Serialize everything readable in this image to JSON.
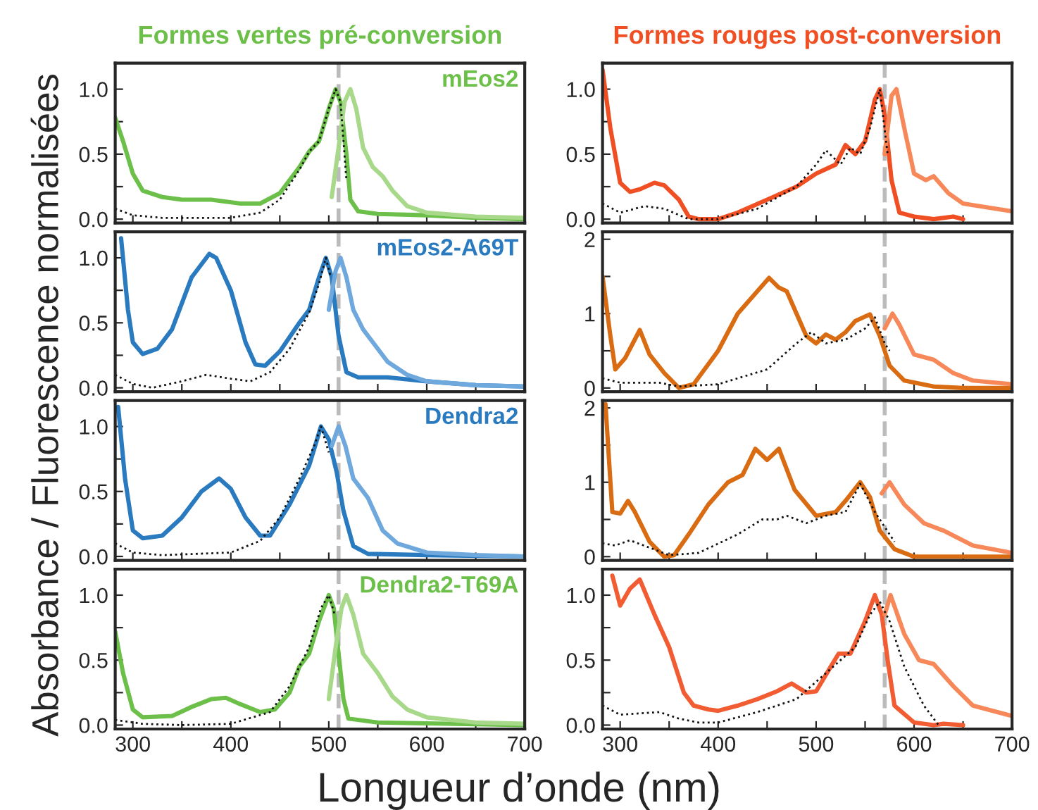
{
  "chart_data": [
    {
      "type": "line",
      "title": "Formes vertes pré-conversion",
      "ylabel": "Absorbance / Fluorescence normalisées",
      "xlabel": "Longueur d’onde (nm)",
      "annotations": [
        "mEos2"
      ],
      "xlim": [
        282,
        700
      ],
      "ylim": [
        -0.03,
        1.2
      ],
      "xticks": [
        300,
        {
          "value": 350,
          "label": null
        },
        400,
        {
          "value": 450,
          "label": null
        },
        500,
        {
          "value": 550,
          "label": null
        },
        600,
        {
          "value": 650,
          "label": null
        },
        700
      ],
      "yticks": [
        {
          "value": 0,
          "label": "0.0"
        },
        {
          "value": 0.25,
          "label": null
        },
        0.5,
        {
          "value": 0.75,
          "label": null
        },
        {
          "value": 1,
          "label": "1.0"
        }
      ],
      "tick_labels": "y",
      "ref_lines": [
        {
          "axis": "x",
          "value": 510,
          "color": "#bbbbbb",
          "line_style": "dashed"
        }
      ],
      "series": [
        {
          "color": "#6cc04a",
          "line_style": "solid",
          "x": [
            282,
            290,
            300,
            310,
            330,
            350,
            380,
            410,
            430,
            450,
            470,
            480,
            490,
            500,
            507,
            512,
            518,
            522,
            530,
            550,
            600,
            650,
            700
          ],
          "values": [
            0.78,
            0.6,
            0.35,
            0.22,
            0.17,
            0.15,
            0.15,
            0.12,
            0.12,
            0.2,
            0.4,
            0.52,
            0.6,
            0.85,
            1.0,
            0.9,
            0.5,
            0.15,
            0.06,
            0.04,
            0.03,
            0.01,
            0.0
          ]
        },
        {
          "color": "#a8d88a",
          "line_style": "solid",
          "x": [
            503,
            510,
            516,
            522,
            528,
            535,
            545,
            555,
            565,
            580,
            600,
            650,
            700
          ],
          "values": [
            0.17,
            0.55,
            0.9,
            1.0,
            0.85,
            0.55,
            0.4,
            0.33,
            0.22,
            0.1,
            0.05,
            0.02,
            0.01
          ]
        },
        {
          "color": "#111111",
          "line_style": "dotted",
          "x": [
            282,
            300,
            330,
            400,
            430,
            450,
            470,
            480,
            490,
            500,
            507,
            512,
            518
          ],
          "values": [
            0.08,
            0.03,
            0.01,
            0.01,
            0.05,
            0.15,
            0.38,
            0.52,
            0.6,
            0.85,
            1.0,
            0.9,
            0.3
          ]
        }
      ]
    },
    {
      "type": "line",
      "title": "Formes rouges post-conversion",
      "xlim": [
        282,
        700
      ],
      "ylim": [
        -0.03,
        1.2
      ],
      "xticks": [
        300,
        {
          "value": 350,
          "label": null
        },
        400,
        {
          "value": 450,
          "label": null
        },
        500,
        {
          "value": 550,
          "label": null
        },
        600,
        {
          "value": 650,
          "label": null
        },
        700
      ],
      "yticks": [
        {
          "value": 0,
          "label": "0.0"
        },
        {
          "value": 0.25,
          "label": null
        },
        0.5,
        {
          "value": 0.75,
          "label": null
        },
        {
          "value": 1,
          "label": "1.0"
        }
      ],
      "tick_labels": "y",
      "ref_lines": [
        {
          "axis": "x",
          "value": 570,
          "color": "#bbbbbb",
          "line_style": "dashed"
        }
      ],
      "series": [
        {
          "color": "#f04e23",
          "line_style": "solid",
          "x": [
            282,
            290,
            300,
            310,
            320,
            335,
            345,
            360,
            370,
            380,
            400,
            420,
            450,
            480,
            500,
            520,
            530,
            540,
            550,
            560,
            565,
            570,
            577,
            585,
            600,
            620,
            640,
            650
          ],
          "values": [
            1.15,
            0.7,
            0.28,
            0.21,
            0.23,
            0.28,
            0.26,
            0.15,
            0.02,
            0.0,
            0.0,
            0.05,
            0.15,
            0.25,
            0.35,
            0.42,
            0.57,
            0.5,
            0.6,
            0.92,
            1.0,
            0.8,
            0.3,
            0.05,
            0.02,
            0.0,
            0.02,
            0.0
          ]
        },
        {
          "color": "#f7885a",
          "line_style": "solid",
          "x": [
            570,
            577,
            582,
            590,
            600,
            612,
            620,
            635,
            650,
            700
          ],
          "values": [
            0.5,
            0.95,
            1.0,
            0.7,
            0.35,
            0.3,
            0.33,
            0.2,
            0.12,
            0.06
          ]
        },
        {
          "color": "#111111",
          "line_style": "dotted",
          "x": [
            282,
            300,
            325,
            345,
            370,
            400,
            440,
            480,
            500,
            510,
            525,
            535,
            545,
            555,
            565,
            573
          ],
          "values": [
            0.12,
            0.05,
            0.1,
            0.08,
            0.0,
            0.0,
            0.08,
            0.25,
            0.42,
            0.53,
            0.42,
            0.55,
            0.5,
            0.7,
            1.0,
            0.5
          ]
        }
      ]
    },
    {
      "type": "line",
      "annotations": [
        "mEos2-A69T"
      ],
      "xlim": [
        282,
        700
      ],
      "ylim": [
        -0.03,
        1.2
      ],
      "xticks": [
        300,
        {
          "value": 350,
          "label": null
        },
        400,
        {
          "value": 450,
          "label": null
        },
        500,
        {
          "value": 550,
          "label": null
        },
        600,
        {
          "value": 650,
          "label": null
        },
        700
      ],
      "yticks": [
        {
          "value": 0,
          "label": "0.0"
        },
        {
          "value": 0.25,
          "label": null
        },
        0.5,
        {
          "value": 0.75,
          "label": null
        },
        {
          "value": 1,
          "label": "1.0"
        }
      ],
      "tick_labels": "y",
      "ref_lines": [
        {
          "axis": "x",
          "value": 510,
          "color": "#bbbbbb",
          "line_style": "dashed"
        }
      ],
      "series": [
        {
          "color": "#2a7abf",
          "line_style": "solid",
          "x": [
            288,
            295,
            300,
            310,
            325,
            340,
            360,
            378,
            385,
            400,
            415,
            425,
            435,
            450,
            470,
            480,
            490,
            497,
            503,
            510,
            518,
            530,
            560,
            600,
            650,
            700
          ],
          "values": [
            1.15,
            0.6,
            0.35,
            0.26,
            0.3,
            0.45,
            0.85,
            1.03,
            1.0,
            0.75,
            0.35,
            0.18,
            0.17,
            0.28,
            0.5,
            0.6,
            0.85,
            1.0,
            0.85,
            0.4,
            0.12,
            0.08,
            0.08,
            0.05,
            0.02,
            0.01
          ]
        },
        {
          "color": "#6fa8dc",
          "line_style": "solid",
          "x": [
            500,
            507,
            512,
            518,
            525,
            535,
            545,
            560,
            580,
            600,
            650,
            700
          ],
          "values": [
            0.6,
            0.9,
            1.0,
            0.85,
            0.6,
            0.45,
            0.35,
            0.2,
            0.1,
            0.05,
            0.02,
            0.01
          ]
        },
        {
          "color": "#111111",
          "line_style": "dotted",
          "x": [
            282,
            300,
            320,
            350,
            375,
            400,
            420,
            440,
            460,
            480,
            490,
            497,
            502
          ],
          "values": [
            0.1,
            0.03,
            0.0,
            0.05,
            0.1,
            0.07,
            0.05,
            0.12,
            0.3,
            0.58,
            0.8,
            1.0,
            0.85
          ]
        }
      ]
    },
    {
      "type": "line",
      "xlim": [
        282,
        700
      ],
      "ylim": [
        -0.05,
        2.1
      ],
      "xticks": [
        300,
        {
          "value": 350,
          "label": null
        },
        400,
        {
          "value": 450,
          "label": null
        },
        500,
        {
          "value": 550,
          "label": null
        },
        600,
        {
          "value": 650,
          "label": null
        },
        700
      ],
      "yticks": [
        0,
        {
          "value": 0.5,
          "label": null
        },
        1,
        {
          "value": 1.5,
          "label": null
        },
        2
      ],
      "tick_labels": "y",
      "ref_lines": [
        {
          "axis": "x",
          "value": 570,
          "color": "#bbbbbb",
          "line_style": "dashed"
        }
      ],
      "series": [
        {
          "color": "#d96c12",
          "line_style": "solid",
          "x": [
            282,
            290,
            295,
            305,
            320,
            330,
            345,
            360,
            375,
            400,
            420,
            440,
            452,
            462,
            470,
            480,
            490,
            500,
            510,
            520,
            530,
            540,
            555,
            565,
            575,
            590,
            620,
            650,
            700
          ],
          "values": [
            1.5,
            0.7,
            0.25,
            0.4,
            0.78,
            0.45,
            0.2,
            0.0,
            0.05,
            0.5,
            1.0,
            1.3,
            1.48,
            1.35,
            1.3,
            1.0,
            0.7,
            0.6,
            0.72,
            0.65,
            0.75,
            0.9,
            0.99,
            0.7,
            0.3,
            0.1,
            0.02,
            0.0,
            0.0
          ]
        },
        {
          "color": "#f7885a",
          "line_style": "solid",
          "x": [
            570,
            578,
            585,
            600,
            620,
            640,
            660,
            700
          ],
          "values": [
            0.8,
            1.0,
            0.85,
            0.45,
            0.38,
            0.2,
            0.1,
            0.05
          ]
        },
        {
          "color": "#111111",
          "line_style": "dotted",
          "x": [
            282,
            300,
            340,
            360,
            400,
            450,
            480,
            495,
            510,
            530,
            550,
            560,
            570,
            575
          ],
          "values": [
            0.13,
            0.07,
            0.07,
            0.02,
            0.05,
            0.25,
            0.6,
            0.75,
            0.6,
            0.65,
            0.8,
            0.95,
            0.6,
            0.5
          ]
        }
      ]
    },
    {
      "type": "line",
      "annotations": [
        "Dendra2"
      ],
      "xlim": [
        282,
        700
      ],
      "ylim": [
        -0.03,
        1.2
      ],
      "xticks": [
        300,
        {
          "value": 350,
          "label": null
        },
        400,
        {
          "value": 450,
          "label": null
        },
        500,
        {
          "value": 550,
          "label": null
        },
        600,
        {
          "value": 650,
          "label": null
        },
        700
      ],
      "yticks": [
        {
          "value": 0,
          "label": "0.0"
        },
        {
          "value": 0.25,
          "label": null
        },
        0.5,
        {
          "value": 0.75,
          "label": null
        },
        {
          "value": 1,
          "label": "1.0"
        }
      ],
      "tick_labels": "y",
      "ref_lines": [
        {
          "axis": "x",
          "value": 510,
          "color": "#bbbbbb",
          "line_style": "dashed"
        }
      ],
      "series": [
        {
          "color": "#2a7abf",
          "line_style": "solid",
          "x": [
            285,
            292,
            300,
            310,
            330,
            350,
            370,
            388,
            400,
            415,
            430,
            440,
            460,
            480,
            492,
            500,
            508,
            515,
            525,
            540,
            600,
            700
          ],
          "values": [
            1.15,
            0.6,
            0.2,
            0.14,
            0.16,
            0.3,
            0.5,
            0.6,
            0.52,
            0.3,
            0.16,
            0.16,
            0.4,
            0.7,
            1.0,
            0.9,
            0.65,
            0.35,
            0.08,
            0.02,
            0.01,
            0.0
          ]
        },
        {
          "color": "#6fa8dc",
          "line_style": "solid",
          "x": [
            503,
            510,
            517,
            525,
            540,
            555,
            570,
            600,
            650,
            700
          ],
          "values": [
            0.85,
            1.0,
            0.85,
            0.6,
            0.45,
            0.2,
            0.1,
            0.03,
            0.01,
            0.0
          ]
        },
        {
          "color": "#111111",
          "line_style": "dotted",
          "x": [
            282,
            300,
            330,
            400,
            430,
            450,
            470,
            485,
            492,
            500
          ],
          "values": [
            0.1,
            0.03,
            0.01,
            0.03,
            0.12,
            0.3,
            0.6,
            0.85,
            1.0,
            0.8
          ]
        }
      ]
    },
    {
      "type": "line",
      "xlim": [
        282,
        700
      ],
      "ylim": [
        -0.05,
        2.1
      ],
      "xticks": [
        300,
        {
          "value": 350,
          "label": null
        },
        400,
        {
          "value": 450,
          "label": null
        },
        500,
        {
          "value": 550,
          "label": null
        },
        600,
        {
          "value": 650,
          "label": null
        },
        700
      ],
      "yticks": [
        0,
        {
          "value": 0.5,
          "label": null
        },
        1,
        {
          "value": 1.5,
          "label": null
        },
        2
      ],
      "tick_labels": "y",
      "ref_lines": [
        {
          "axis": "x",
          "value": 570,
          "color": "#bbbbbb",
          "line_style": "dashed"
        }
      ],
      "series": [
        {
          "color": "#d96c12",
          "line_style": "solid",
          "x": [
            285,
            292,
            300,
            308,
            315,
            330,
            345,
            355,
            370,
            390,
            410,
            425,
            438,
            450,
            462,
            478,
            500,
            520,
            530,
            545,
            555,
            565,
            580,
            600,
            700
          ],
          "values": [
            2.05,
            0.6,
            0.58,
            0.75,
            0.6,
            0.2,
            0.0,
            0.02,
            0.3,
            0.7,
            1.0,
            1.1,
            1.45,
            1.3,
            1.45,
            0.9,
            0.55,
            0.6,
            0.75,
            1.0,
            0.8,
            0.35,
            0.1,
            0.0,
            0.0
          ]
        },
        {
          "color": "#f7885a",
          "line_style": "solid",
          "x": [
            567,
            575,
            590,
            610,
            630,
            660,
            700
          ],
          "values": [
            0.85,
            1.0,
            0.7,
            0.45,
            0.35,
            0.15,
            0.05
          ]
        },
        {
          "color": "#111111",
          "line_style": "dotted",
          "x": [
            282,
            295,
            310,
            330,
            350,
            380,
            420,
            445,
            460,
            470,
            490,
            510,
            530,
            545,
            560,
            580
          ],
          "values": [
            0.18,
            0.15,
            0.22,
            0.12,
            0.02,
            0.05,
            0.3,
            0.5,
            0.5,
            0.55,
            0.45,
            0.55,
            0.6,
            0.98,
            0.6,
            0.2
          ]
        }
      ]
    },
    {
      "type": "line",
      "annotations": [
        "Dendra2-T69A"
      ],
      "xlim": [
        282,
        700
      ],
      "ylim": [
        -0.03,
        1.2
      ],
      "xticks": [
        300,
        {
          "value": 350,
          "label": null
        },
        400,
        {
          "value": 450,
          "label": null
        },
        500,
        {
          "value": 550,
          "label": null
        },
        600,
        {
          "value": 650,
          "label": null
        },
        700
      ],
      "yticks": [
        {
          "value": 0,
          "label": "0.0"
        },
        {
          "value": 0.25,
          "label": null
        },
        0.5,
        {
          "value": 0.75,
          "label": null
        },
        {
          "value": 1,
          "label": "1.0"
        }
      ],
      "ref_lines": [
        {
          "axis": "x",
          "value": 510,
          "color": "#bbbbbb",
          "line_style": "dashed"
        }
      ],
      "series": [
        {
          "color": "#6cc04a",
          "line_style": "solid",
          "x": [
            282,
            290,
            300,
            310,
            340,
            360,
            380,
            395,
            410,
            430,
            445,
            460,
            470,
            480,
            490,
            500,
            505,
            510,
            515,
            520,
            550,
            700
          ],
          "values": [
            0.72,
            0.4,
            0.12,
            0.06,
            0.07,
            0.14,
            0.2,
            0.21,
            0.16,
            0.1,
            0.12,
            0.25,
            0.45,
            0.55,
            0.8,
            1.0,
            0.9,
            0.55,
            0.2,
            0.05,
            0.02,
            0.0
          ]
        },
        {
          "color": "#a8d88a",
          "line_style": "solid",
          "x": [
            500,
            507,
            513,
            518,
            525,
            535,
            550,
            565,
            580,
            600,
            650,
            700
          ],
          "values": [
            0.2,
            0.6,
            0.9,
            1.0,
            0.85,
            0.55,
            0.4,
            0.22,
            0.12,
            0.06,
            0.02,
            0.01
          ]
        },
        {
          "color": "#111111",
          "line_style": "dotted",
          "x": [
            282,
            310,
            350,
            400,
            440,
            460,
            480,
            492,
            500,
            506
          ],
          "values": [
            0.04,
            0.01,
            0.0,
            0.01,
            0.1,
            0.3,
            0.6,
            0.9,
            1.0,
            0.85
          ]
        }
      ]
    },
    {
      "type": "line",
      "xlim": [
        282,
        700
      ],
      "ylim": [
        -0.03,
        1.2
      ],
      "xticks": [
        300,
        {
          "value": 350,
          "label": null
        },
        400,
        {
          "value": 450,
          "label": null
        },
        500,
        {
          "value": 550,
          "label": null
        },
        600,
        {
          "value": 650,
          "label": null
        },
        700
      ],
      "yticks": [
        {
          "value": 0,
          "label": "0.0"
        },
        {
          "value": 0.25,
          "label": null
        },
        0.5,
        {
          "value": 0.75,
          "label": null
        },
        {
          "value": 1,
          "label": "1.0"
        }
      ],
      "ref_lines": [
        {
          "axis": "x",
          "value": 570,
          "color": "#bbbbbb",
          "line_style": "dashed"
        }
      ],
      "series": [
        {
          "color": "#f25c32",
          "line_style": "solid",
          "x": [
            292,
            300,
            310,
            320,
            335,
            350,
            365,
            375,
            390,
            400,
            420,
            440,
            460,
            475,
            490,
            500,
            515,
            523,
            535,
            550,
            560,
            567,
            573,
            580,
            600,
            620,
            630,
            650
          ],
          "values": [
            1.15,
            0.92,
            1.05,
            1.12,
            0.85,
            0.6,
            0.25,
            0.15,
            0.12,
            0.11,
            0.15,
            0.2,
            0.26,
            0.32,
            0.25,
            0.26,
            0.45,
            0.55,
            0.55,
            0.8,
            1.0,
            0.85,
            0.5,
            0.15,
            0.02,
            0.0,
            0.01,
            0.0
          ]
        },
        {
          "color": "#f7885a",
          "line_style": "solid",
          "x": [
            570,
            576,
            590,
            605,
            620,
            640,
            660,
            700
          ],
          "values": [
            0.85,
            1.0,
            0.7,
            0.5,
            0.47,
            0.3,
            0.15,
            0.07
          ]
        },
        {
          "color": "#111111",
          "line_style": "dotted",
          "x": [
            282,
            300,
            340,
            360,
            380,
            400,
            440,
            480,
            510,
            540,
            555,
            565,
            575,
            590,
            610,
            625
          ],
          "values": [
            0.15,
            0.08,
            0.1,
            0.05,
            0.02,
            0.02,
            0.1,
            0.2,
            0.4,
            0.6,
            0.85,
            0.95,
            0.8,
            0.45,
            0.15,
            0.0
          ]
        }
      ]
    }
  ]
}
